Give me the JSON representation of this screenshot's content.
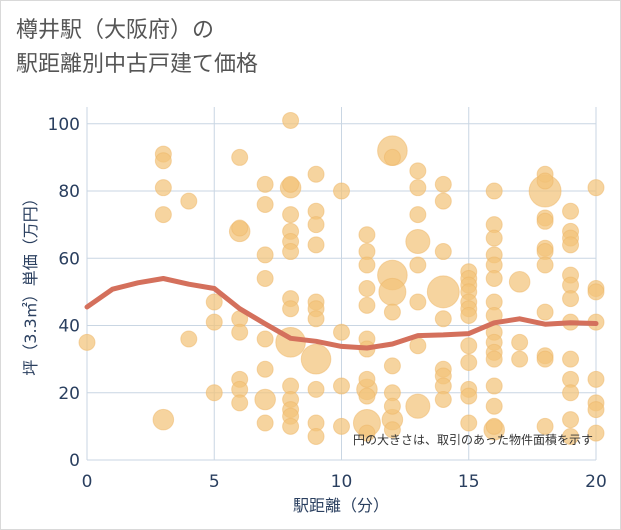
{
  "title": {
    "line1": "樽井駅（大阪府）の",
    "line2": "駅距離別中古戸建て価格"
  },
  "colors": {
    "bubble_fill": "#f3c47a",
    "bubble_stroke": "#edb665",
    "line": "#d4705c",
    "grid": "#c9d6e3",
    "axis_text": "#2a3f5f",
    "plot_bg": "#ffffff"
  },
  "chart_data": {
    "type": "scatter",
    "title": "樽井駅（大阪府）の駅距離別中古戸建て価格",
    "xlabel": "駅距離（分）",
    "ylabel": "坪（3.3㎡）単価（万円）",
    "xlim": [
      0,
      20
    ],
    "ylim": [
      0,
      105
    ],
    "x_ticks": [
      0,
      5,
      10,
      15,
      20
    ],
    "y_ticks": [
      0,
      20,
      40,
      60,
      80,
      100
    ],
    "annotation": "円の大きさは、取引のあった物件面積を示す",
    "size_note": "bubble size = relative transaction area",
    "points": [
      {
        "x": 0,
        "y": 35,
        "s": 1
      },
      {
        "x": 3,
        "y": 91,
        "s": 1
      },
      {
        "x": 3,
        "y": 89,
        "s": 1
      },
      {
        "x": 3,
        "y": 81,
        "s": 1
      },
      {
        "x": 3,
        "y": 73,
        "s": 1
      },
      {
        "x": 3,
        "y": 12,
        "s": 2
      },
      {
        "x": 4,
        "y": 77,
        "s": 1
      },
      {
        "x": 4,
        "y": 36,
        "s": 1
      },
      {
        "x": 5,
        "y": 47,
        "s": 1
      },
      {
        "x": 5,
        "y": 41,
        "s": 1
      },
      {
        "x": 5,
        "y": 20,
        "s": 1
      },
      {
        "x": 6,
        "y": 90,
        "s": 1
      },
      {
        "x": 6,
        "y": 69,
        "s": 1
      },
      {
        "x": 6,
        "y": 68,
        "s": 2
      },
      {
        "x": 6,
        "y": 42,
        "s": 1
      },
      {
        "x": 6,
        "y": 38,
        "s": 1
      },
      {
        "x": 6,
        "y": 24,
        "s": 1
      },
      {
        "x": 6,
        "y": 21,
        "s": 1
      },
      {
        "x": 6,
        "y": 17,
        "s": 1
      },
      {
        "x": 7,
        "y": 82,
        "s": 1
      },
      {
        "x": 7,
        "y": 76,
        "s": 1
      },
      {
        "x": 7,
        "y": 61,
        "s": 1
      },
      {
        "x": 7,
        "y": 54,
        "s": 1
      },
      {
        "x": 7,
        "y": 36,
        "s": 1
      },
      {
        "x": 7,
        "y": 27,
        "s": 1
      },
      {
        "x": 7,
        "y": 18,
        "s": 2
      },
      {
        "x": 7,
        "y": 11,
        "s": 1
      },
      {
        "x": 8,
        "y": 101,
        "s": 1
      },
      {
        "x": 8,
        "y": 82,
        "s": 1
      },
      {
        "x": 8,
        "y": 81,
        "s": 2
      },
      {
        "x": 8,
        "y": 73,
        "s": 1
      },
      {
        "x": 8,
        "y": 68,
        "s": 1
      },
      {
        "x": 8,
        "y": 65,
        "s": 1
      },
      {
        "x": 8,
        "y": 62,
        "s": 1
      },
      {
        "x": 8,
        "y": 48,
        "s": 1
      },
      {
        "x": 8,
        "y": 45,
        "s": 1
      },
      {
        "x": 8,
        "y": 35,
        "s": 5
      },
      {
        "x": 8,
        "y": 22,
        "s": 1
      },
      {
        "x": 8,
        "y": 18,
        "s": 1
      },
      {
        "x": 8,
        "y": 15,
        "s": 1
      },
      {
        "x": 8,
        "y": 13,
        "s": 1
      },
      {
        "x": 8,
        "y": 10,
        "s": 1
      },
      {
        "x": 9,
        "y": 85,
        "s": 1
      },
      {
        "x": 9,
        "y": 74,
        "s": 1
      },
      {
        "x": 9,
        "y": 70,
        "s": 1
      },
      {
        "x": 9,
        "y": 64,
        "s": 1
      },
      {
        "x": 9,
        "y": 47,
        "s": 1
      },
      {
        "x": 9,
        "y": 45,
        "s": 1
      },
      {
        "x": 9,
        "y": 42,
        "s": 1
      },
      {
        "x": 9,
        "y": 30,
        "s": 5
      },
      {
        "x": 9,
        "y": 21,
        "s": 1
      },
      {
        "x": 9,
        "y": 11,
        "s": 1
      },
      {
        "x": 9,
        "y": 7,
        "s": 1
      },
      {
        "x": 10,
        "y": 80,
        "s": 1
      },
      {
        "x": 10,
        "y": 38,
        "s": 1
      },
      {
        "x": 10,
        "y": 22,
        "s": 1
      },
      {
        "x": 10,
        "y": 10,
        "s": 1
      },
      {
        "x": 11,
        "y": 67,
        "s": 1
      },
      {
        "x": 11,
        "y": 62,
        "s": 1
      },
      {
        "x": 11,
        "y": 58,
        "s": 1
      },
      {
        "x": 11,
        "y": 51,
        "s": 1
      },
      {
        "x": 11,
        "y": 46,
        "s": 1
      },
      {
        "x": 11,
        "y": 36,
        "s": 1
      },
      {
        "x": 11,
        "y": 33,
        "s": 1
      },
      {
        "x": 11,
        "y": 24,
        "s": 1
      },
      {
        "x": 11,
        "y": 21,
        "s": 2
      },
      {
        "x": 11,
        "y": 19,
        "s": 1
      },
      {
        "x": 11,
        "y": 11,
        "s": 4
      },
      {
        "x": 11,
        "y": 8,
        "s": 1
      },
      {
        "x": 12,
        "y": 92,
        "s": 5
      },
      {
        "x": 12,
        "y": 90,
        "s": 1
      },
      {
        "x": 12,
        "y": 55,
        "s": 5
      },
      {
        "x": 12,
        "y": 50,
        "s": 4
      },
      {
        "x": 12,
        "y": 44,
        "s": 1
      },
      {
        "x": 12,
        "y": 28,
        "s": 1
      },
      {
        "x": 12,
        "y": 20,
        "s": 1
      },
      {
        "x": 12,
        "y": 16,
        "s": 1
      },
      {
        "x": 12,
        "y": 12,
        "s": 2
      },
      {
        "x": 12,
        "y": 9,
        "s": 1
      },
      {
        "x": 13,
        "y": 86,
        "s": 1
      },
      {
        "x": 13,
        "y": 81,
        "s": 1
      },
      {
        "x": 13,
        "y": 73,
        "s": 1
      },
      {
        "x": 13,
        "y": 65,
        "s": 3
      },
      {
        "x": 13,
        "y": 58,
        "s": 1
      },
      {
        "x": 13,
        "y": 47,
        "s": 1
      },
      {
        "x": 13,
        "y": 34,
        "s": 1
      },
      {
        "x": 13,
        "y": 16,
        "s": 3
      },
      {
        "x": 14,
        "y": 82,
        "s": 1
      },
      {
        "x": 14,
        "y": 77,
        "s": 1
      },
      {
        "x": 14,
        "y": 62,
        "s": 1
      },
      {
        "x": 14,
        "y": 50,
        "s": 6
      },
      {
        "x": 14,
        "y": 42,
        "s": 1
      },
      {
        "x": 14,
        "y": 27,
        "s": 1
      },
      {
        "x": 14,
        "y": 25,
        "s": 1
      },
      {
        "x": 14,
        "y": 22,
        "s": 1
      },
      {
        "x": 14,
        "y": 18,
        "s": 1
      },
      {
        "x": 15,
        "y": 56,
        "s": 1
      },
      {
        "x": 15,
        "y": 54,
        "s": 1
      },
      {
        "x": 15,
        "y": 52,
        "s": 1
      },
      {
        "x": 15,
        "y": 50,
        "s": 1
      },
      {
        "x": 15,
        "y": 47,
        "s": 1
      },
      {
        "x": 15,
        "y": 45,
        "s": 1
      },
      {
        "x": 15,
        "y": 43,
        "s": 1
      },
      {
        "x": 15,
        "y": 34,
        "s": 1
      },
      {
        "x": 15,
        "y": 29,
        "s": 1
      },
      {
        "x": 15,
        "y": 21,
        "s": 1
      },
      {
        "x": 15,
        "y": 19,
        "s": 1
      },
      {
        "x": 15,
        "y": 11,
        "s": 1
      },
      {
        "x": 16,
        "y": 80,
        "s": 1
      },
      {
        "x": 16,
        "y": 70,
        "s": 1
      },
      {
        "x": 16,
        "y": 66,
        "s": 1
      },
      {
        "x": 16,
        "y": 61,
        "s": 1
      },
      {
        "x": 16,
        "y": 58,
        "s": 1
      },
      {
        "x": 16,
        "y": 54,
        "s": 1
      },
      {
        "x": 16,
        "y": 47,
        "s": 1
      },
      {
        "x": 16,
        "y": 43,
        "s": 1
      },
      {
        "x": 16,
        "y": 38,
        "s": 1
      },
      {
        "x": 16,
        "y": 35,
        "s": 1
      },
      {
        "x": 16,
        "y": 32,
        "s": 1
      },
      {
        "x": 16,
        "y": 30,
        "s": 1
      },
      {
        "x": 16,
        "y": 22,
        "s": 1
      },
      {
        "x": 16,
        "y": 16,
        "s": 1
      },
      {
        "x": 16,
        "y": 10,
        "s": 1
      },
      {
        "x": 16,
        "y": 9,
        "s": 2
      },
      {
        "x": 17,
        "y": 53,
        "s": 2
      },
      {
        "x": 17,
        "y": 35,
        "s": 1
      },
      {
        "x": 17,
        "y": 30,
        "s": 1
      },
      {
        "x": 18,
        "y": 85,
        "s": 1
      },
      {
        "x": 18,
        "y": 83,
        "s": 1
      },
      {
        "x": 18,
        "y": 80,
        "s": 6
      },
      {
        "x": 18,
        "y": 72,
        "s": 1
      },
      {
        "x": 18,
        "y": 71,
        "s": 1
      },
      {
        "x": 18,
        "y": 63,
        "s": 1
      },
      {
        "x": 18,
        "y": 62,
        "s": 1
      },
      {
        "x": 18,
        "y": 58,
        "s": 1
      },
      {
        "x": 18,
        "y": 44,
        "s": 1
      },
      {
        "x": 18,
        "y": 31,
        "s": 1
      },
      {
        "x": 18,
        "y": 30,
        "s": 1
      },
      {
        "x": 18,
        "y": 10,
        "s": 1
      },
      {
        "x": 19,
        "y": 74,
        "s": 1
      },
      {
        "x": 19,
        "y": 68,
        "s": 1
      },
      {
        "x": 19,
        "y": 66,
        "s": 1
      },
      {
        "x": 19,
        "y": 64,
        "s": 1
      },
      {
        "x": 19,
        "y": 55,
        "s": 1
      },
      {
        "x": 19,
        "y": 52,
        "s": 1
      },
      {
        "x": 19,
        "y": 48,
        "s": 1
      },
      {
        "x": 19,
        "y": 41,
        "s": 1
      },
      {
        "x": 19,
        "y": 30,
        "s": 1
      },
      {
        "x": 19,
        "y": 24,
        "s": 1
      },
      {
        "x": 19,
        "y": 20,
        "s": 1
      },
      {
        "x": 19,
        "y": 12,
        "s": 1
      },
      {
        "x": 19,
        "y": 7,
        "s": 1
      },
      {
        "x": 20,
        "y": 81,
        "s": 1
      },
      {
        "x": 20,
        "y": 51,
        "s": 1
      },
      {
        "x": 20,
        "y": 50,
        "s": 1
      },
      {
        "x": 20,
        "y": 41,
        "s": 1
      },
      {
        "x": 20,
        "y": 24,
        "s": 1
      },
      {
        "x": 20,
        "y": 17,
        "s": 1
      },
      {
        "x": 20,
        "y": 15,
        "s": 1
      },
      {
        "x": 20,
        "y": 8,
        "s": 1
      }
    ],
    "series": [
      {
        "name": "average",
        "x": [
          0,
          1,
          2,
          3,
          4,
          5,
          6,
          7,
          8,
          9,
          10,
          11,
          12,
          13,
          14,
          15,
          16,
          17,
          18,
          19,
          20
        ],
        "values": [
          45.5,
          50.8,
          52.7,
          54,
          52.3,
          51,
          45,
          40.5,
          36.2,
          35.3,
          33.8,
          33.3,
          34.5,
          37,
          37.2,
          37.6,
          40.8,
          42,
          40.4,
          40.8,
          40.6
        ]
      }
    ]
  }
}
